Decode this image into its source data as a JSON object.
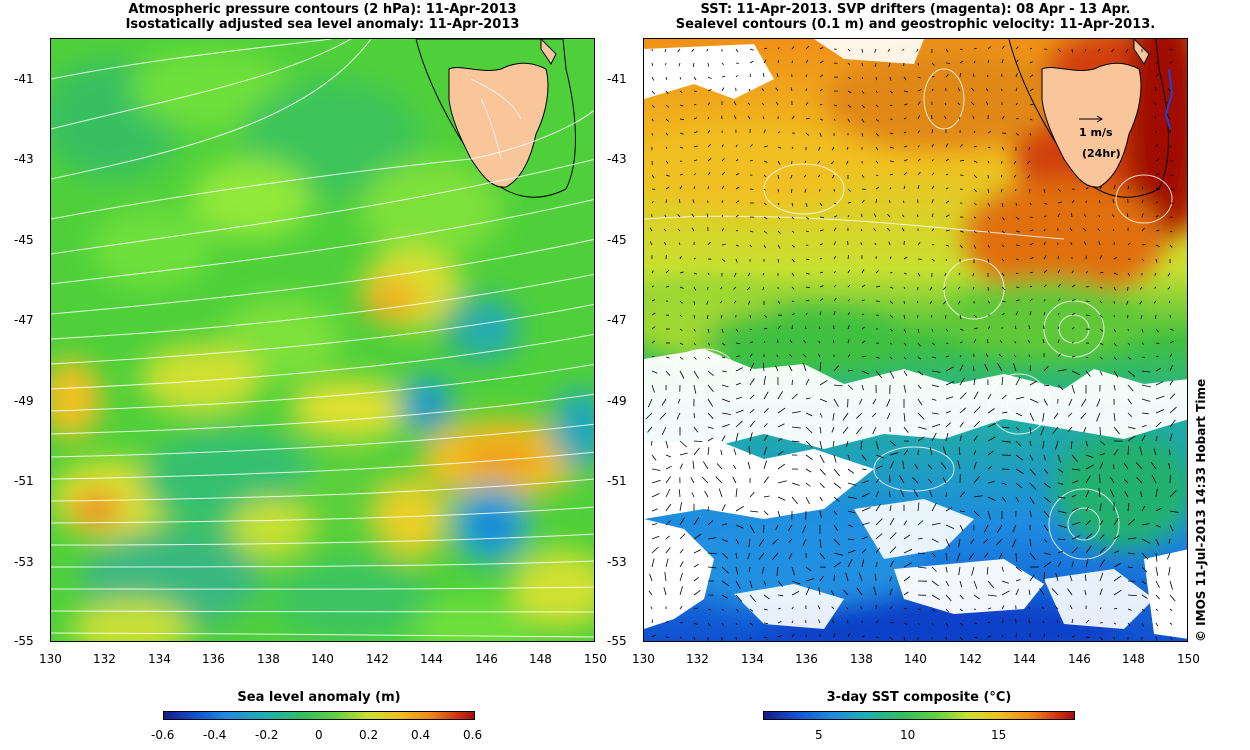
{
  "left_panel": {
    "title_line1": "Atmospheric pressure contours (2 hPa): 11-Apr-2013",
    "title_line2": "Isostatically adjusted sea level anomaly: 11-Apr-2013",
    "y_ticks": [
      "-41",
      "-43",
      "-45",
      "-47",
      "-49",
      "-51",
      "-53",
      "-55"
    ],
    "x_ticks": [
      "130",
      "132",
      "134",
      "136",
      "138",
      "140",
      "142",
      "144",
      "146",
      "148",
      "150"
    ],
    "colorbar": {
      "title": "Sea level anomaly (m)",
      "ticks": [
        "-0.6",
        "-0.4",
        "-0.2",
        "0",
        "0.2",
        "0.4",
        "0.6"
      ]
    }
  },
  "right_panel": {
    "title_line1": "SST: 11-Apr-2013. SVP drifters (magenta): 08 Apr - 13 Apr.",
    "title_line2": "Sealevel contours (0.1 m) and geostrophic velocity: 11-Apr-2013.",
    "y_ticks": [
      "-41",
      "-43",
      "-45",
      "-47",
      "-49",
      "-51",
      "-53",
      "-55"
    ],
    "x_ticks": [
      "130",
      "132",
      "134",
      "136",
      "138",
      "140",
      "142",
      "144",
      "146",
      "148",
      "150"
    ],
    "velocity_scale_label": "1 m/s",
    "velocity_scale_sublabel": "(24hr)",
    "colorbar": {
      "title": "3-day SST composite (°C)",
      "ticks": [
        "5",
        "10",
        "15"
      ]
    }
  },
  "credit": "© IMOS 11-Jul-2013 14:33 Hobart Time",
  "colors": {
    "land": "#f9c59a",
    "sla_base": "#4fd03a",
    "sst_warm": "#e07010",
    "sst_cool": "#1e8ce0"
  }
}
